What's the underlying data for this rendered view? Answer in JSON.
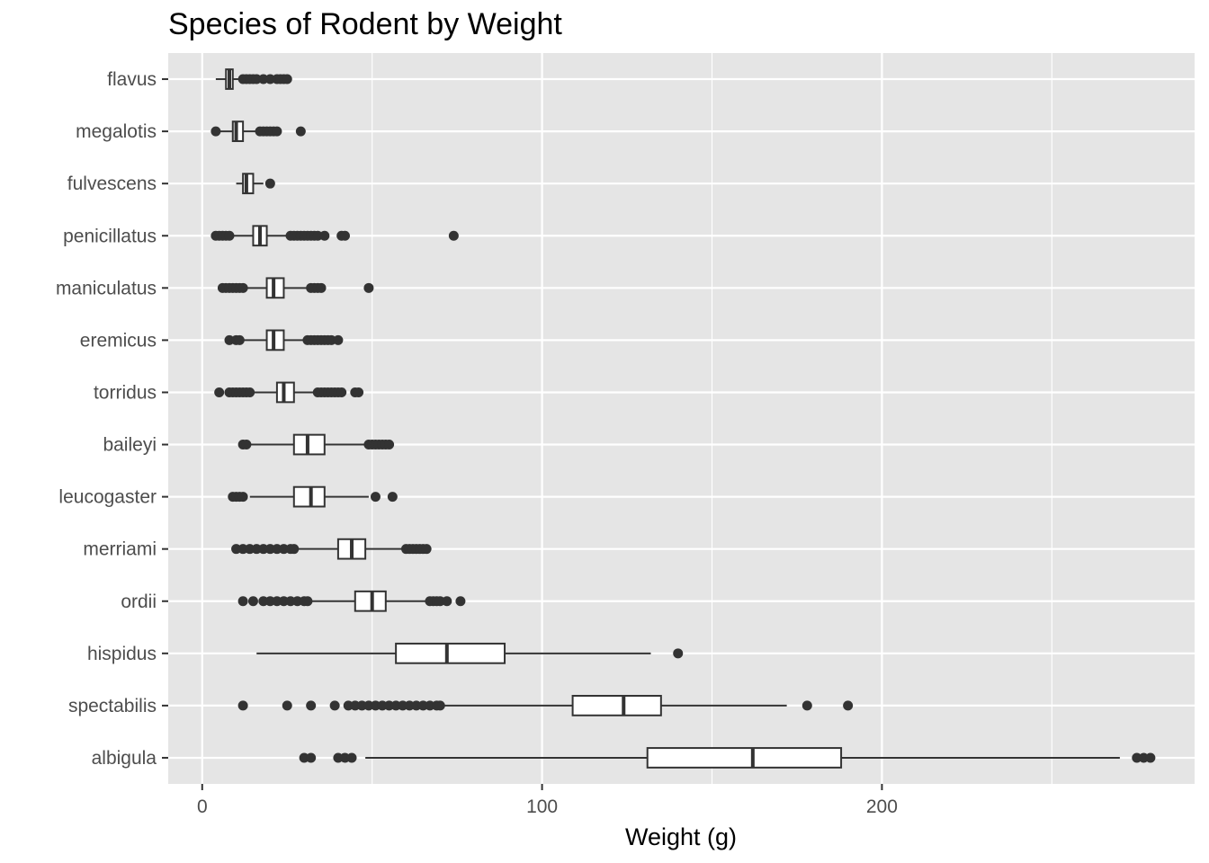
{
  "chart_data": {
    "type": "boxplot",
    "title": "Species of Rodent by Weight",
    "xlabel": "Weight (g)",
    "ylabel": "",
    "xlim": [
      -10,
      292
    ],
    "xticks": [
      0,
      100,
      200
    ],
    "grid": true,
    "legend": "none",
    "series": [
      {
        "name": "flavus",
        "min": 4,
        "q1": 7,
        "median": 8,
        "q3": 9,
        "max": 11,
        "outliers": [
          12,
          13,
          14,
          15,
          16,
          18,
          20,
          22,
          23,
          24,
          25
        ]
      },
      {
        "name": "megalotis",
        "min": 4,
        "q1": 9,
        "median": 10,
        "q3": 12,
        "max": 16,
        "outliers": [
          4,
          17,
          18,
          19,
          20,
          21,
          22,
          29
        ]
      },
      {
        "name": "fulvescens",
        "min": 10,
        "q1": 12,
        "median": 13,
        "q3": 15,
        "max": 18,
        "outliers": [
          20
        ]
      },
      {
        "name": "penicillatus",
        "min": 8,
        "q1": 15,
        "median": 17,
        "q3": 19,
        "max": 26,
        "outliers": [
          4,
          5,
          6,
          7,
          8,
          26,
          27,
          28,
          29,
          30,
          31,
          32,
          33,
          34,
          36,
          41,
          42,
          74
        ]
      },
      {
        "name": "maniculatus",
        "min": 13,
        "q1": 19,
        "median": 21,
        "q3": 24,
        "max": 31,
        "outliers": [
          6,
          7,
          8,
          9,
          10,
          11,
          12,
          32,
          33,
          34,
          35,
          49
        ]
      },
      {
        "name": "eremicus",
        "min": 12,
        "q1": 19,
        "median": 21,
        "q3": 24,
        "max": 31,
        "outliers": [
          8,
          10,
          11,
          31,
          32,
          33,
          34,
          35,
          36,
          37,
          38,
          40
        ]
      },
      {
        "name": "torridus",
        "min": 15,
        "q1": 22,
        "median": 24,
        "q3": 27,
        "max": 34,
        "outliers": [
          5,
          8,
          9,
          10,
          11,
          12,
          13,
          14,
          34,
          35,
          36,
          37,
          38,
          39,
          40,
          41,
          45,
          46
        ]
      },
      {
        "name": "baileyi",
        "min": 13,
        "q1": 27,
        "median": 31,
        "q3": 36,
        "max": 49,
        "outliers": [
          12,
          13,
          49,
          50,
          51,
          52,
          53,
          54,
          55
        ]
      },
      {
        "name": "leucogaster",
        "min": 14,
        "q1": 27,
        "median": 32,
        "q3": 36,
        "max": 49,
        "outliers": [
          9,
          10,
          11,
          12,
          51,
          56
        ]
      },
      {
        "name": "merriami",
        "min": 28,
        "q1": 40,
        "median": 44,
        "q3": 48,
        "max": 59,
        "outliers": [
          10,
          12,
          14,
          16,
          18,
          20,
          22,
          24,
          26,
          27,
          60,
          61,
          62,
          63,
          64,
          65,
          66
        ]
      },
      {
        "name": "ordii",
        "min": 32,
        "q1": 45,
        "median": 50,
        "q3": 54,
        "max": 67,
        "outliers": [
          12,
          15,
          18,
          20,
          22,
          24,
          26,
          28,
          30,
          31,
          67,
          68,
          69,
          70,
          72,
          76
        ]
      },
      {
        "name": "hispidus",
        "min": 16,
        "q1": 57,
        "median": 72,
        "q3": 89,
        "max": 132,
        "outliers": [
          140
        ]
      },
      {
        "name": "spectabilis",
        "min": 71,
        "q1": 109,
        "median": 124,
        "q3": 135,
        "max": 172,
        "outliers": [
          12,
          25,
          32,
          39,
          43,
          45,
          47,
          49,
          51,
          53,
          55,
          57,
          59,
          61,
          63,
          65,
          67,
          69,
          70,
          178,
          190
        ]
      },
      {
        "name": "albigula",
        "min": 48,
        "q1": 131,
        "median": 162,
        "q3": 188,
        "max": 270,
        "outliers": [
          30,
          32,
          40,
          42,
          44,
          275,
          277,
          279
        ]
      }
    ]
  }
}
